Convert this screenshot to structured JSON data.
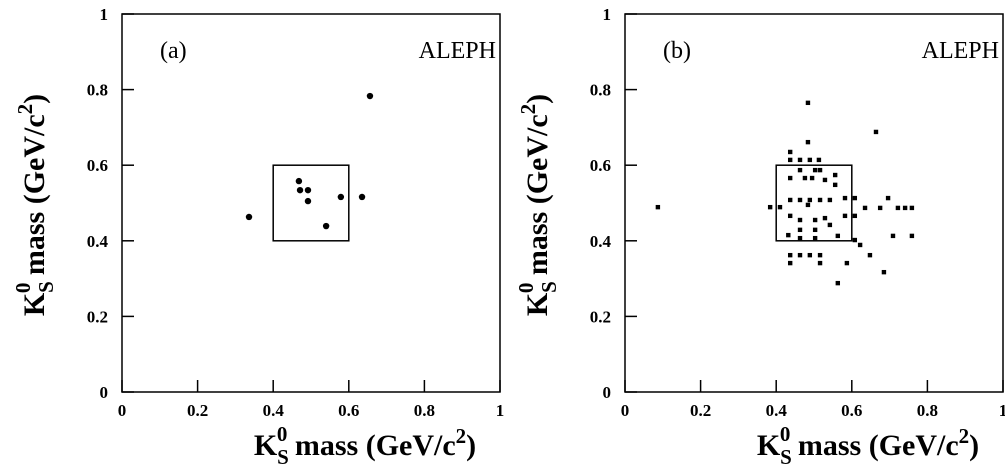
{
  "chart_data": [
    {
      "type": "scatter",
      "marker": "circle",
      "color": "#000000",
      "annotations": [
        "(a)",
        "ALEPH"
      ],
      "xlabel": [
        "K",
        "S",
        "0",
        " mass (GeV/c",
        "2",
        ")"
      ],
      "ylabel": [
        "K",
        "S",
        "0",
        " mass (GeV/c",
        "2",
        ")"
      ],
      "xlim": [
        0,
        1
      ],
      "ylim": [
        0,
        1
      ],
      "xticks": [
        0,
        0.2,
        0.4,
        0.6,
        0.8,
        1
      ],
      "yticks": [
        0,
        0.2,
        0.4,
        0.6,
        0.8,
        1
      ],
      "box": {
        "x": [
          0.4,
          0.6
        ],
        "y": [
          0.4,
          0.6
        ]
      },
      "x": [
        0.336,
        0.468,
        0.471,
        0.492,
        0.492,
        0.579,
        0.54,
        0.635,
        0.656
      ],
      "y": [
        0.463,
        0.558,
        0.534,
        0.534,
        0.505,
        0.516,
        0.439,
        0.516,
        0.783
      ]
    },
    {
      "type": "scatter",
      "marker": "square",
      "color": "#000000",
      "annotations": [
        "(b)",
        "ALEPH"
      ],
      "xlabel": [
        "K",
        "S",
        "0",
        " mass (GeV/c",
        "2",
        ")"
      ],
      "ylabel": [
        "K",
        "S",
        "0",
        " mass (GeV/c",
        "2",
        ")"
      ],
      "xlim": [
        0,
        1
      ],
      "ylim": [
        0,
        1
      ],
      "xticks": [
        0,
        0.2,
        0.4,
        0.6,
        0.8,
        1
      ],
      "yticks": [
        0,
        0.2,
        0.4,
        0.6,
        0.8,
        1
      ],
      "box": {
        "x": [
          0.4,
          0.6
        ],
        "y": [
          0.4,
          0.6
        ]
      },
      "x": [
        0.484,
        0.484,
        0.513,
        0.664,
        0.437,
        0.437,
        0.463,
        0.489,
        0.463,
        0.503,
        0.516,
        0.556,
        0.437,
        0.476,
        0.495,
        0.529,
        0.556,
        0.087,
        0.384,
        0.41,
        0.437,
        0.463,
        0.489,
        0.516,
        0.542,
        0.582,
        0.608,
        0.635,
        0.675,
        0.696,
        0.722,
        0.741,
        0.759,
        0.437,
        0.463,
        0.503,
        0.529,
        0.542,
        0.582,
        0.608,
        0.463,
        0.503,
        0.432,
        0.463,
        0.503,
        0.563,
        0.709,
        0.759,
        0.608,
        0.622,
        0.648,
        0.437,
        0.463,
        0.489,
        0.516,
        0.516,
        0.437,
        0.587,
        0.563,
        0.685,
        0.484
      ],
      "y": [
        0.765,
        0.661,
        0.614,
        0.688,
        0.635,
        0.614,
        0.614,
        0.614,
        0.587,
        0.587,
        0.587,
        0.574,
        0.566,
        0.566,
        0.566,
        0.561,
        0.548,
        0.489,
        0.489,
        0.489,
        0.508,
        0.508,
        0.508,
        0.508,
        0.508,
        0.513,
        0.513,
        0.487,
        0.487,
        0.513,
        0.487,
        0.487,
        0.487,
        0.466,
        0.455,
        0.455,
        0.46,
        0.442,
        0.466,
        0.466,
        0.429,
        0.429,
        0.415,
        0.407,
        0.407,
        0.413,
        0.413,
        0.413,
        0.402,
        0.389,
        0.362,
        0.362,
        0.362,
        0.362,
        0.362,
        0.341,
        0.341,
        0.341,
        0.288,
        0.317,
        0.495
      ]
    }
  ]
}
